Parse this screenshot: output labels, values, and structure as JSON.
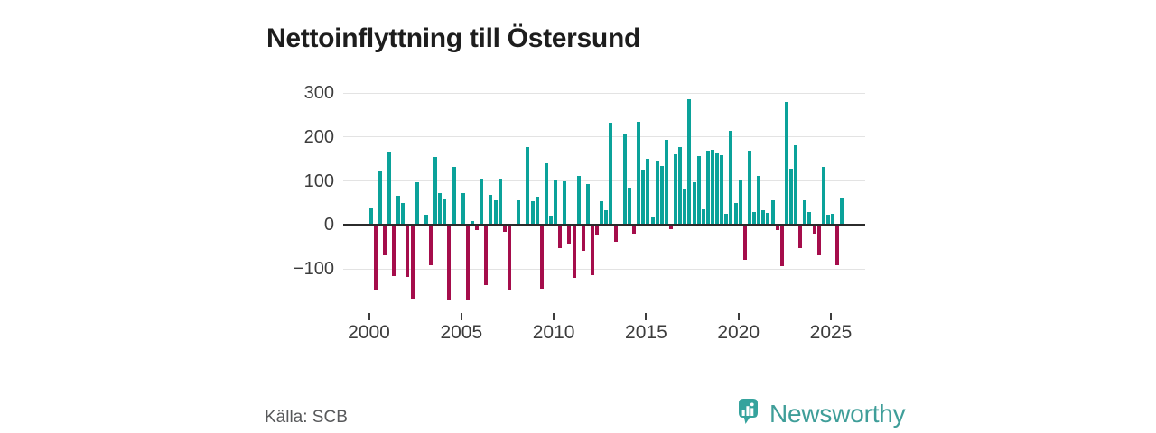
{
  "title": "Nettoinflyttning till Östersund",
  "source": {
    "label": "Källa: SCB"
  },
  "brand": {
    "name": "Newsworthy",
    "icon": "newsworthy-bar-chart-pin",
    "color": "#3f9e99",
    "icon_color": "#35a39d"
  },
  "colors": {
    "positive_bar": "#0ba29a",
    "negative_bar": "#a50d4b",
    "zero_line": "#2b2b2b",
    "gridline": "#e3e3e3",
    "axis_text": "#3c3c3c",
    "title_text": "#1d1d1d",
    "source_text": "#58595b"
  },
  "chart_data": {
    "type": "bar",
    "title": "Nettoinflyttning till Östersund",
    "frequency": "quarterly",
    "x_start": {
      "year": 2000,
      "quarter": 1
    },
    "x_end": {
      "year": 2025,
      "quarter": 3
    },
    "x_axis_tick_years": [
      2000,
      2005,
      2010,
      2015,
      2020,
      2025
    ],
    "x_axis_tick_labels": [
      "2000",
      "2005",
      "2010",
      "2015",
      "2020",
      "2025"
    ],
    "y_axis_ticks": [
      300,
      200,
      100,
      0,
      -100
    ],
    "y_axis_tick_labels": [
      "300",
      "200",
      "100",
      "0",
      "−100"
    ],
    "ylim": [
      -190,
      325
    ],
    "grid": true,
    "legend": "none",
    "series": [
      {
        "name": "Nettoinflyttning",
        "values": [
          38,
          -149,
          122,
          -70,
          165,
          -116,
          67,
          49,
          -118,
          -168,
          98,
          0,
          23,
          -92,
          154,
          72,
          59,
          -171,
          132,
          0,
          72,
          -171,
          8,
          -12,
          105,
          -137,
          69,
          57,
          105,
          -15,
          -150,
          0,
          56,
          0,
          178,
          53,
          64,
          -145,
          141,
          21,
          102,
          -52,
          100,
          -44,
          -121,
          112,
          -58,
          93,
          -114,
          -23,
          53,
          33,
          232,
          -38,
          0,
          208,
          84,
          -20,
          235,
          125,
          150,
          19,
          147,
          134,
          193,
          -10,
          160,
          177,
          82,
          285,
          98,
          156,
          36,
          169,
          170,
          163,
          158,
          26,
          213,
          50,
          101,
          -80,
          168,
          29,
          112,
          33,
          28,
          55,
          -12,
          -93,
          280,
          127,
          182,
          -53,
          55,
          29,
          -20,
          -70,
          131,
          24,
          26,
          -91,
          62
        ]
      }
    ]
  }
}
